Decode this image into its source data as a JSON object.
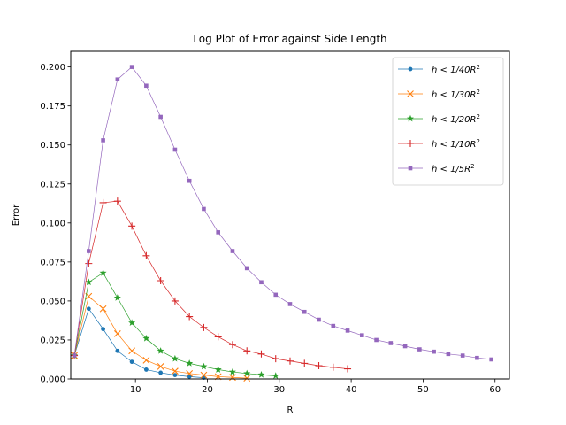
{
  "chart_data": {
    "type": "line",
    "title": "Log Plot of Error against Side Length",
    "xlabel": "R",
    "ylabel": "Error",
    "xlim": [
      1,
      62
    ],
    "ylim": [
      0,
      0.21
    ],
    "xticks": [
      10,
      20,
      30,
      40,
      50,
      60
    ],
    "yticks": [
      0.0,
      0.025,
      0.05,
      0.075,
      0.1,
      0.125,
      0.15,
      0.175,
      0.2
    ],
    "ytick_labels": [
      "0.000",
      "0.025",
      "0.050",
      "0.075",
      "0.100",
      "0.125",
      "0.150",
      "0.175",
      "0.200"
    ],
    "grid": false,
    "legend_position": "top-right",
    "series": [
      {
        "name": "h < 1/40R²",
        "legend_main": "h < 1/40R",
        "legend_sup": "2",
        "color": "#1f77b4",
        "marker": "circle",
        "x": [
          1.5,
          3.5,
          5.5,
          7.5,
          9.5,
          11.5,
          13.5,
          15.5,
          17.5,
          19.5
        ],
        "y": [
          0.015,
          0.045,
          0.032,
          0.018,
          0.011,
          0.006,
          0.004,
          0.0025,
          0.0015,
          0.0008
        ]
      },
      {
        "name": "h < 1/30R²",
        "legend_main": "h < 1/30R",
        "legend_sup": "2",
        "color": "#ff7f0e",
        "marker": "x",
        "x": [
          1.5,
          3.5,
          5.5,
          7.5,
          9.5,
          11.5,
          13.5,
          15.5,
          17.5,
          19.5,
          21.5,
          23.5,
          25.5
        ],
        "y": [
          0.015,
          0.053,
          0.045,
          0.029,
          0.018,
          0.012,
          0.008,
          0.005,
          0.0035,
          0.0025,
          0.0015,
          0.001,
          0.0005
        ]
      },
      {
        "name": "h < 1/20R²",
        "legend_main": "h < 1/20R",
        "legend_sup": "2",
        "color": "#2ca02c",
        "marker": "star",
        "x": [
          1.5,
          3.5,
          5.5,
          7.5,
          9.5,
          11.5,
          13.5,
          15.5,
          17.5,
          19.5,
          21.5,
          23.5,
          25.5,
          27.5,
          29.5
        ],
        "y": [
          0.015,
          0.062,
          0.068,
          0.052,
          0.036,
          0.026,
          0.018,
          0.013,
          0.01,
          0.008,
          0.006,
          0.0045,
          0.0035,
          0.0027,
          0.002
        ]
      },
      {
        "name": "h < 1/10R²",
        "legend_main": "h < 1/10R",
        "legend_sup": "2",
        "color": "#d62728",
        "marker": "plus",
        "x": [
          1.5,
          3.5,
          5.5,
          7.5,
          9.5,
          11.5,
          13.5,
          15.5,
          17.5,
          19.5,
          21.5,
          23.5,
          25.5,
          27.5,
          29.5,
          31.5,
          33.5,
          35.5,
          37.5,
          39.5
        ],
        "y": [
          0.015,
          0.074,
          0.113,
          0.114,
          0.098,
          0.079,
          0.063,
          0.05,
          0.04,
          0.033,
          0.027,
          0.022,
          0.018,
          0.016,
          0.013,
          0.0115,
          0.01,
          0.0085,
          0.0075,
          0.0065
        ]
      },
      {
        "name": "h < 1/5R²",
        "legend_main": "h < 1/5R",
        "legend_sup": "2",
        "color": "#9467bd",
        "marker": "square",
        "x": [
          1.5,
          3.5,
          5.5,
          7.5,
          9.5,
          11.5,
          13.5,
          15.5,
          17.5,
          19.5,
          21.5,
          23.5,
          25.5,
          27.5,
          29.5,
          31.5,
          33.5,
          35.5,
          37.5,
          39.5,
          41.5,
          43.5,
          45.5,
          47.5,
          49.5,
          51.5,
          53.5,
          55.5,
          57.5,
          59.5
        ],
        "y": [
          0.015,
          0.082,
          0.153,
          0.192,
          0.2,
          0.188,
          0.168,
          0.147,
          0.127,
          0.109,
          0.094,
          0.082,
          0.071,
          0.062,
          0.054,
          0.048,
          0.043,
          0.038,
          0.034,
          0.031,
          0.028,
          0.025,
          0.023,
          0.021,
          0.019,
          0.0175,
          0.016,
          0.015,
          0.0135,
          0.0125
        ]
      }
    ]
  }
}
